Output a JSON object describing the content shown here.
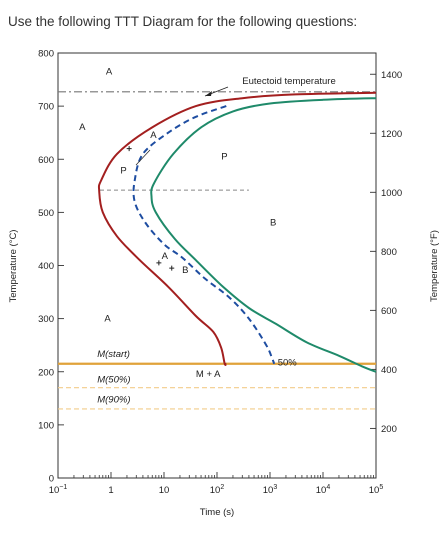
{
  "question": "Use the following TTT Diagram for the following questions:",
  "chart_data": {
    "type": "line",
    "xlabel": "Time (s)",
    "ylabel_left": "Temperature (°C)",
    "ylabel_right": "Temperature (°F)",
    "x_scale": "log",
    "xlim": [
      0.1,
      100000
    ],
    "ylim": [
      0,
      800
    ],
    "x_ticks": [
      {
        "value": 0.1,
        "base": "10",
        "exp": "−1"
      },
      {
        "value": 1,
        "label": "1"
      },
      {
        "value": 10,
        "label": "10"
      },
      {
        "value": 100,
        "base": "10",
        "exp": "2"
      },
      {
        "value": 1000,
        "base": "10",
        "exp": "3"
      },
      {
        "value": 10000,
        "base": "10",
        "exp": "4"
      },
      {
        "value": 100000,
        "base": "10",
        "exp": "5"
      }
    ],
    "y_ticks_left": [
      0,
      100,
      200,
      300,
      400,
      500,
      600,
      700,
      800
    ],
    "y_ticks_right": [
      200,
      400,
      600,
      800,
      1000,
      1200,
      1400
    ],
    "reference_lines": [
      {
        "name": "Eutectoid temperature",
        "y": 727,
        "style": "dash-dot",
        "color": "#777777"
      },
      {
        "name": "M(start)",
        "y": 215,
        "style": "solid",
        "color": "#e0a23a"
      },
      {
        "name": "M(50%)",
        "y": 170,
        "style": "dashed",
        "color": "#f2cc8a"
      },
      {
        "name": "M(90%)",
        "y": 130,
        "style": "dashed",
        "color": "#f2cc8a"
      }
    ],
    "series": [
      {
        "key": "start",
        "color": "#a31f1f",
        "style": "solid",
        "points": [
          [
            100000,
            725
          ],
          [
            3000,
            722
          ],
          [
            300,
            715
          ],
          [
            40,
            700
          ],
          [
            6,
            660
          ],
          [
            1.3,
            610
          ],
          [
            0.65,
            560
          ],
          [
            0.6,
            540
          ],
          [
            0.7,
            500
          ],
          [
            1.3,
            455
          ],
          [
            3.5,
            410
          ],
          [
            12,
            360
          ],
          [
            40,
            305
          ],
          [
            85,
            275
          ],
          [
            120,
            245
          ],
          [
            140,
            215
          ],
          [
            150,
            215
          ]
        ]
      },
      {
        "key": "fifty",
        "color": "#1e4da1",
        "style": "dashed",
        "points": [
          [
            150,
            700
          ],
          [
            40,
            680
          ],
          [
            12,
            650
          ],
          [
            4,
            610
          ],
          [
            2.8,
            560
          ],
          [
            2.8,
            520
          ],
          [
            4.5,
            480
          ],
          [
            10,
            440
          ],
          [
            22,
            415
          ],
          [
            60,
            375
          ],
          [
            170,
            340
          ],
          [
            400,
            300
          ],
          [
            850,
            250
          ],
          [
            1100,
            225
          ],
          [
            1200,
            215
          ]
        ]
      },
      {
        "key": "end",
        "color": "#1f8a6a",
        "style": "solid",
        "points": [
          [
            100000,
            715
          ],
          [
            10000,
            712
          ],
          [
            1000,
            705
          ],
          [
            200,
            690
          ],
          [
            50,
            660
          ],
          [
            15,
            610
          ],
          [
            6.5,
            555
          ],
          [
            5.8,
            530
          ],
          [
            7,
            500
          ],
          [
            16,
            450
          ],
          [
            40,
            410
          ],
          [
            130,
            360
          ],
          [
            400,
            320
          ],
          [
            1300,
            290
          ],
          [
            5000,
            255
          ],
          [
            20000,
            230
          ],
          [
            55000,
            210
          ],
          [
            100000,
            200
          ]
        ]
      }
    ],
    "markers": [
      {
        "name": "point-1",
        "t": 2.2,
        "T": 620
      },
      {
        "name": "point-2",
        "t": 8,
        "T": 405
      },
      {
        "name": "point-3",
        "t": 14,
        "T": 395
      }
    ],
    "annotations": [
      {
        "name": "label-a-top",
        "text": "A",
        "t": 0.8,
        "T": 760
      },
      {
        "name": "label-a-left",
        "text": "A",
        "t": 0.25,
        "T": 655
      },
      {
        "name": "label-eutectoid",
        "text": "Eutectoid temperature",
        "t": 300,
        "T": 742
      },
      {
        "name": "label-p-upper-small",
        "text": "P",
        "t": 1.5,
        "T": 573
      },
      {
        "name": "label-p",
        "text": "P",
        "t": 120,
        "T": 600
      },
      {
        "name": "label-a-arrow",
        "text": "A",
        "t": 5.5,
        "T": 640
      },
      {
        "name": "label-a-mid",
        "text": "A",
        "t": 9,
        "T": 412
      },
      {
        "name": "label-b-mid",
        "text": "B",
        "t": 22,
        "T": 386
      },
      {
        "name": "label-b",
        "text": "B",
        "t": 1000,
        "T": 475
      },
      {
        "name": "label-a-bottom",
        "text": "A",
        "t": 0.75,
        "T": 295
      },
      {
        "name": "label-mstart",
        "text": "M(start)",
        "t": 0.55,
        "T": 228,
        "italic": true
      },
      {
        "name": "label-m50",
        "text": "M(50%)",
        "t": 0.55,
        "T": 180,
        "italic": true
      },
      {
        "name": "label-m90",
        "text": "M(90%)",
        "t": 0.55,
        "T": 142,
        "italic": true
      },
      {
        "name": "label-ma",
        "text": "M + A",
        "t": 40,
        "T": 190
      },
      {
        "name": "label-50pct",
        "text": "50%",
        "t": 1400,
        "T": 212
      }
    ]
  }
}
